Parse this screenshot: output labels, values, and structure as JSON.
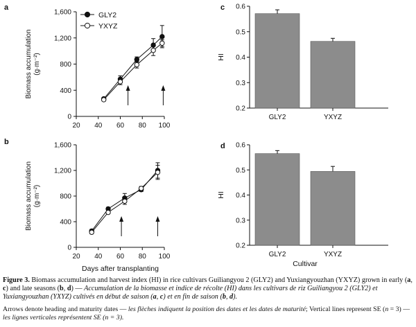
{
  "chart_data": [
    {
      "panel": "a",
      "type": "line",
      "ylabel": "Biomass accumulation",
      "yunit": "(g·m⁻²)",
      "xlim": [
        20,
        100
      ],
      "ylim": [
        0,
        1600
      ],
      "xticks": [
        "20",
        "40",
        "60",
        "80",
        "100"
      ],
      "yticks": [
        "0",
        "400",
        "800",
        "1,200",
        "1,600"
      ],
      "legend": "top-left",
      "series": [
        {
          "name": "GLY2",
          "marker": "filled-circle",
          "x": [
            45,
            60,
            75,
            90,
            98
          ],
          "y": [
            270,
            570,
            870,
            1090,
            1220
          ],
          "err": [
            20,
            50,
            40,
            100,
            170
          ]
        },
        {
          "name": "YXYZ",
          "marker": "open-circle",
          "x": [
            45,
            60,
            75,
            90,
            98
          ],
          "y": [
            255,
            530,
            790,
            1010,
            1120
          ],
          "err": [
            20,
            45,
            50,
            80,
            50
          ]
        }
      ],
      "arrows_x": [
        67,
        99
      ]
    },
    {
      "panel": "b",
      "type": "line",
      "ylabel": "Biomass accumulation",
      "yunit": "(g·m⁻²)",
      "xlabel": "Days after transplanting",
      "xlim": [
        20,
        100
      ],
      "ylim": [
        0,
        1600
      ],
      "xticks": [
        "20",
        "40",
        "60",
        "80",
        "100"
      ],
      "yticks": [
        "0",
        "400",
        "800",
        "1,200",
        "1,600"
      ],
      "series": [
        {
          "name": "GLY2",
          "marker": "filled-circle",
          "x": [
            34,
            49,
            64,
            79,
            94
          ],
          "y": [
            255,
            600,
            770,
            900,
            1200
          ],
          "err": [
            25,
            25,
            70,
            30,
            120
          ]
        },
        {
          "name": "YXYZ",
          "marker": "open-circle",
          "x": [
            34,
            49,
            64,
            79,
            94
          ],
          "y": [
            235,
            545,
            720,
            920,
            1170
          ],
          "err": [
            25,
            20,
            50,
            30,
            110
          ]
        }
      ],
      "arrows_x": [
        61,
        94
      ]
    },
    {
      "panel": "c",
      "type": "bar",
      "ylabel": "HI",
      "categories": [
        "GLY2",
        "YXYZ"
      ],
      "values": [
        0.571,
        0.462
      ],
      "err": [
        0.015,
        0.012
      ],
      "ylim": [
        0.2,
        0.6
      ],
      "yticks": [
        "0.2",
        "0.3",
        "0.4",
        "0.5",
        "0.6"
      ],
      "bar_color": "#8c8c8c"
    },
    {
      "panel": "d",
      "type": "bar",
      "ylabel": "HI",
      "xlabel": "Cultivar",
      "categories": [
        "GLY2",
        "YXYZ"
      ],
      "values": [
        0.565,
        0.494
      ],
      "err": [
        0.012,
        0.02
      ],
      "ylim": [
        0.2,
        0.6
      ],
      "yticks": [
        "0.2",
        "0.3",
        "0.4",
        "0.5",
        "0.6"
      ],
      "bar_color": "#8c8c8c"
    }
  ],
  "caption": {
    "label": "Figure 3.",
    "text_en_1": " Biomass accumulation and harvest index (HI) in rice cultivars Guiliangyou 2 (GLY2) and Yuxiangyouzhan (YXYZ) grown in early (",
    "b1": "a",
    "sep1": ", ",
    "b2": "c",
    "text_en_2": ") and late seasons (",
    "b3": "b",
    "sep2": ", ",
    "b4": "d",
    "text_en_3": ") — ",
    "text_fr_1": "Accumulation de la biomasse et indice de récolte (HI) dans les cultivars de riz Guiliangyou 2 (GLY2) et Yuxiangyouzhan (YXYZ) cultivés en début de saison (",
    "b5": "a",
    "sep3": ", ",
    "b6": "c",
    "text_fr_2": ") et en fin de saison (",
    "b7": "b",
    "sep4": ", ",
    "b8": "d",
    "text_fr_3": ").",
    "note_en_1": "Arrows denote heading and maturity dates — ",
    "note_fr_1": "les flèches indiquent la position des dates et les dates de maturité",
    "note_en_2": "; Vertical lines represent SE (",
    "note_n1": "n",
    "note_en_3": " = 3) — ",
    "note_fr_2": "les lignes verticales représentent SE (",
    "note_n2": "n",
    "note_fr_3": " = 3)."
  }
}
